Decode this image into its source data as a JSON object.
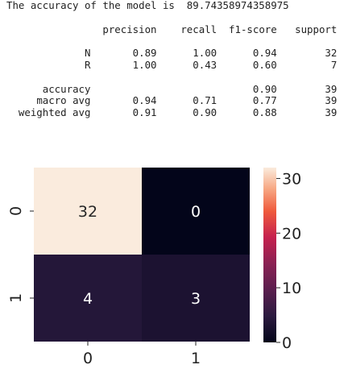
{
  "accuracy_line": "The accuracy of the model is  89.74358974358975",
  "report": {
    "header": [
      "precision",
      "recall",
      "f1-score",
      "support"
    ],
    "rows": [
      {
        "label": "N",
        "cells": [
          "0.89",
          "1.00",
          "0.94",
          "32"
        ]
      },
      {
        "label": "R",
        "cells": [
          "1.00",
          "0.43",
          "0.60",
          "7"
        ]
      }
    ],
    "summary": [
      {
        "label": "accuracy",
        "cells": [
          "",
          "",
          "0.90",
          "39"
        ]
      },
      {
        "label": "macro avg",
        "cells": [
          "0.94",
          "0.71",
          "0.77",
          "39"
        ]
      },
      {
        "label": "weighted avg",
        "cells": [
          "0.91",
          "0.90",
          "0.88",
          "39"
        ]
      }
    ]
  },
  "chart_data": {
    "type": "heatmap",
    "title": "",
    "xlabel": "",
    "ylabel": "",
    "x_categories": [
      "0",
      "1"
    ],
    "y_categories": [
      "0",
      "1"
    ],
    "values": [
      [
        32,
        0
      ],
      [
        4,
        3
      ]
    ],
    "colormap": "rocket",
    "colorbar": {
      "min": 0,
      "max": 32,
      "ticks": [
        0,
        10,
        20,
        30
      ]
    },
    "annotations": true,
    "annotation_colors": {
      "light_cell": "#262626",
      "dark_cell": "#ffffff"
    }
  }
}
